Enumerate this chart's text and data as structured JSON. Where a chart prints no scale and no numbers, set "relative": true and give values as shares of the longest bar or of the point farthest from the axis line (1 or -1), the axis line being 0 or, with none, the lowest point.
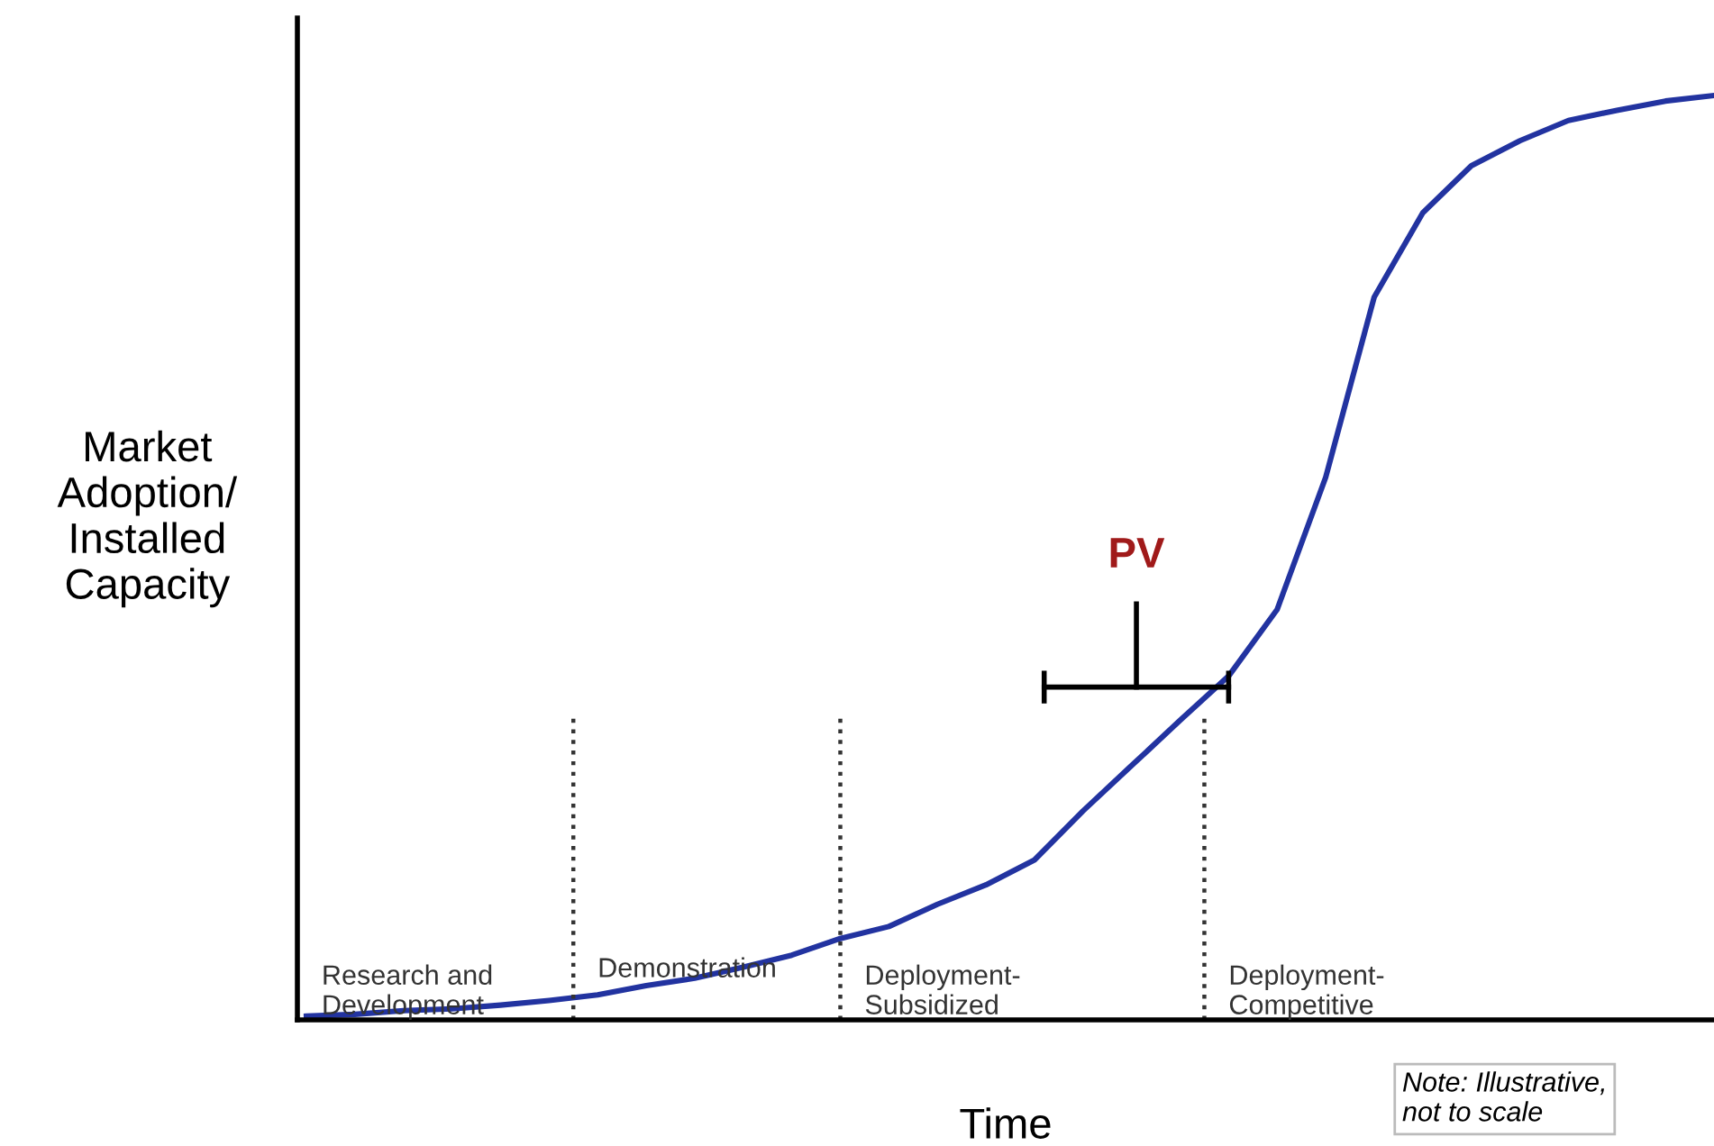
{
  "chart_data": {
    "type": "line",
    "relative": true,
    "xlabel": "Time",
    "ylabel": "Market\nAdoption/\nInstalled\nCapacity",
    "categories": [
      null,
      null,
      null,
      null,
      null,
      null,
      null,
      null,
      null,
      null,
      null,
      null,
      null,
      null,
      null,
      null,
      null,
      null,
      null,
      null,
      null,
      null,
      null,
      null,
      null,
      null,
      null,
      null,
      null,
      null
    ],
    "series": [
      {
        "color": "#2233a0",
        "values": [
          0.004,
          0.006,
          0.01,
          0.012,
          0.016,
          0.021,
          0.027,
          0.037,
          0.045,
          0.057,
          0.07,
          0.088,
          0.101,
          0.125,
          0.146,
          0.173,
          0.226,
          0.275,
          0.324,
          0.372,
          0.444,
          0.587,
          0.782,
          0.873,
          0.924,
          0.951,
          0.973,
          0.984,
          0.994,
          1.0
        ]
      }
    ],
    "annotations": [
      "Research and\nDevelopment",
      "Demonstration",
      "Deployment-\nSubsidized",
      "Deployment-\nCompetitive",
      "PV",
      "Note: Illustrative,\nnot to scale"
    ],
    "legend": false,
    "marker": "none",
    "line_style": "solid"
  }
}
